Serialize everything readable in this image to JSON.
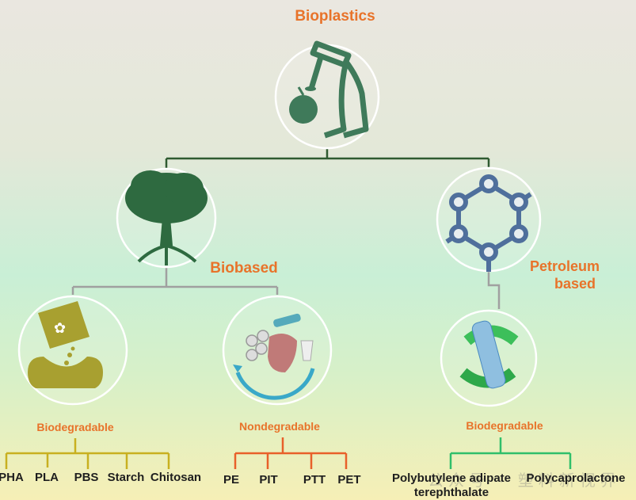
{
  "title": "Bioplastics",
  "branches": {
    "biobased": {
      "label": "Biobased",
      "biodegradable": {
        "label": "Biodegradable",
        "items": [
          "PHA",
          "PLA",
          "PBS",
          "Starch",
          "Chitosan"
        ]
      },
      "nondegradable": {
        "label": "Nondegradable",
        "items": [
          "PE",
          "PIT",
          "PTT",
          "PET"
        ]
      }
    },
    "petroleum": {
      "label_line1": "Petroleum",
      "label_line2": "based",
      "biodegradable": {
        "label": "Biodegradable",
        "items": [
          "Polybutylene adipate",
          "terephthalate",
          "Polycaprolactone"
        ]
      }
    }
  },
  "watermark": "公众号 · 塑料新视界",
  "colors": {
    "accent": "#e8732a",
    "icon_green": "#3f7a5a",
    "tree_green": "#2e6a40",
    "molecule_blue": "#4f6f9c",
    "yellow_line": "#c8b020",
    "orange_line": "#e8602a",
    "green_line": "#2fbf6a"
  }
}
